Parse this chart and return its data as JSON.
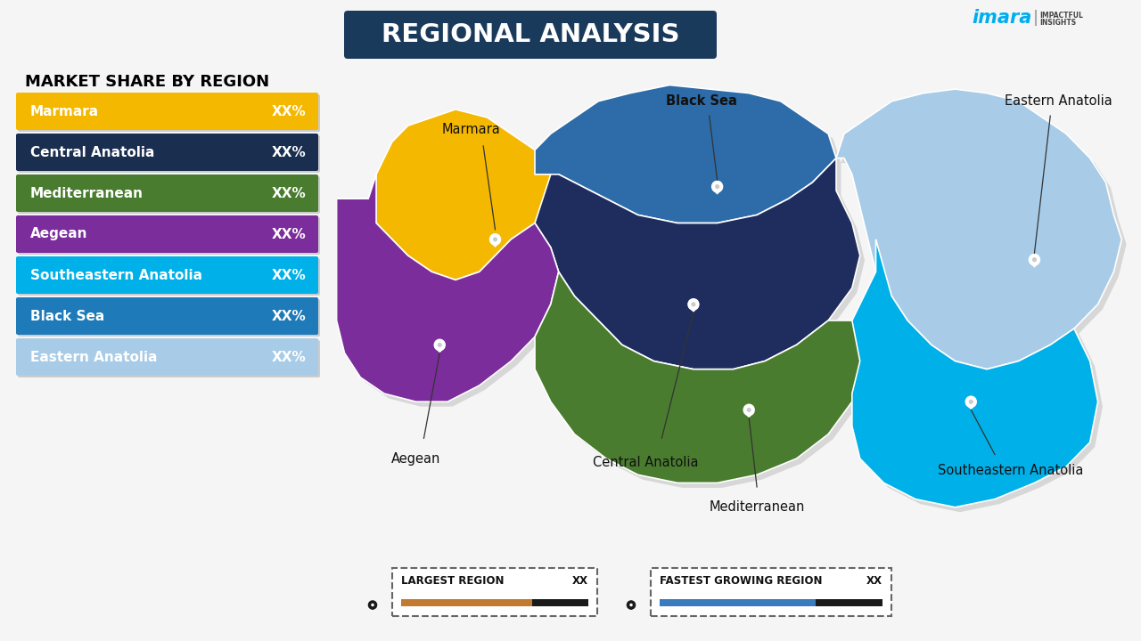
{
  "title": "REGIONAL ANALYSIS",
  "subtitle": "MARKET SHARE BY REGION",
  "background_color": "#f0f0f0",
  "title_bg_color": "#1a3a5c",
  "title_text_color": "#ffffff",
  "subtitle_color": "#000000",
  "regions": [
    {
      "name": "Marmara",
      "color": "#f5b800",
      "value": "XX%"
    },
    {
      "name": "Central Anatolia",
      "color": "#1a2e50",
      "value": "XX%"
    },
    {
      "name": "Mediterranean",
      "color": "#4a7c2f",
      "value": "XX%"
    },
    {
      "name": "Aegean",
      "color": "#7b2d9b",
      "value": "XX%"
    },
    {
      "name": "Southeastern Anatolia",
      "color": "#00b0e8",
      "value": "XX%"
    },
    {
      "name": "Black Sea",
      "color": "#1e7ab8",
      "value": "XX%"
    },
    {
      "name": "Eastern Anatolia",
      "color": "#a8cce8",
      "value": "XX%"
    }
  ],
  "legend_items": [
    {
      "label": "LARGEST REGION",
      "value": "XX",
      "bar_color": "#c17a30",
      "bar_end_color": "#1a1a1a"
    },
    {
      "label": "FASTEST GROWING REGION",
      "value": "XX",
      "bar_color": "#3a7abf",
      "bar_end_color": "#1a1a1a"
    }
  ],
  "imarc_color": "#00aeef",
  "map_region_colors": {
    "Marmara": "#f5b800",
    "Central Anatolia": "#1e2d5e",
    "Mediterranean": "#4a7c2f",
    "Aegean": "#7b2d9b",
    "Southeastern Anatolia": "#00b0e8",
    "Black Sea": "#2d6ca8",
    "Eastern Anatolia": "#a8cce8"
  },
  "map_shadow_color": "#cccccc"
}
